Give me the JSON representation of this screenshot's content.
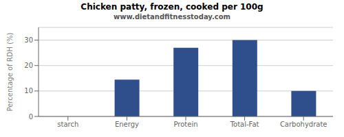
{
  "chart_data": {
    "type": "bar",
    "title": "Chicken patty, frozen, cooked per 100g",
    "subtitle": "www.dietandfitnesstoday.com",
    "ylabel": "Percentage of RDH (%)",
    "categories": [
      "starch",
      "Energy",
      "Protein",
      "Total-Fat",
      "Carbohydrate"
    ],
    "values": [
      0,
      14.5,
      27,
      30,
      10
    ],
    "color": "#2e4e8c",
    "ylim": [
      0,
      35
    ],
    "yticks": [
      0,
      10,
      20,
      30
    ],
    "grid": true
  }
}
